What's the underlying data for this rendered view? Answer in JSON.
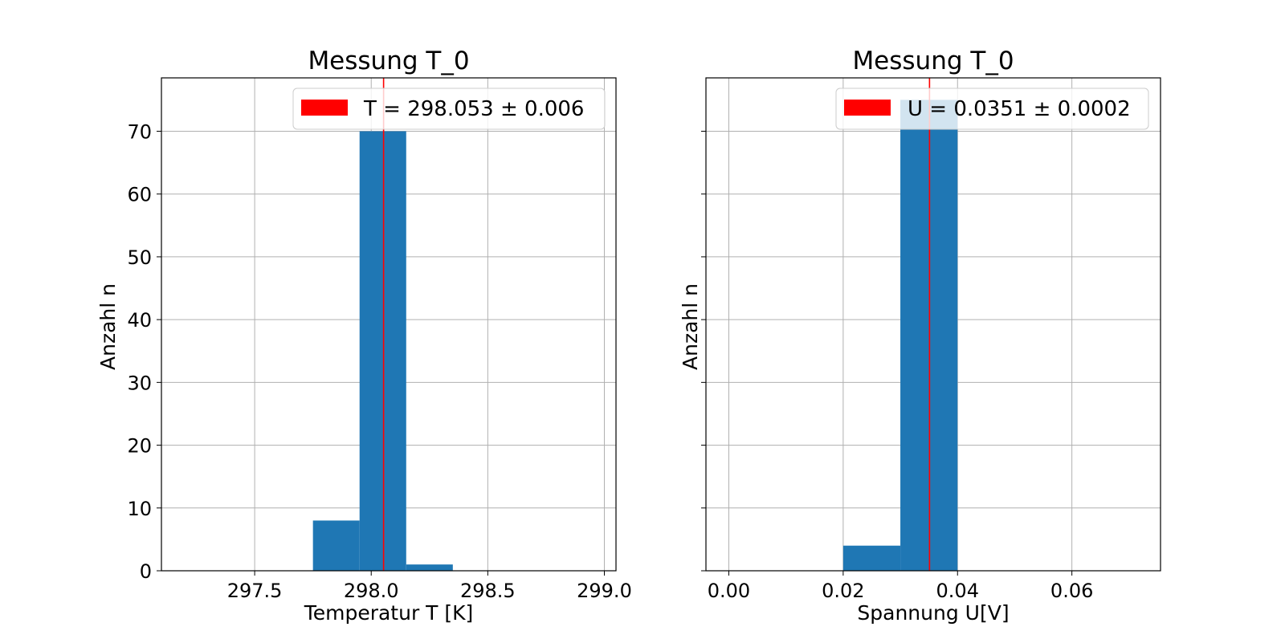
{
  "chart_data": [
    {
      "type": "bar",
      "title": "Messung T_0",
      "xlabel": "Temperatur T [K]",
      "ylabel": "Anzahl n",
      "xlim": [
        297.1,
        299.05
      ],
      "ylim": [
        0,
        78.5
      ],
      "xticks": [
        297.5,
        298.0,
        298.5,
        299.0
      ],
      "xtick_labels": [
        "297.5",
        "298.0",
        "298.5",
        "299.0"
      ],
      "yticks": [
        0,
        10,
        20,
        30,
        40,
        50,
        60,
        70
      ],
      "ytick_labels": [
        "0",
        "10",
        "20",
        "30",
        "40",
        "50",
        "60",
        "70"
      ],
      "grid": true,
      "bars": [
        {
          "x0": 297.75,
          "x1": 297.95,
          "value": 8
        },
        {
          "x0": 297.95,
          "x1": 298.15,
          "value": 70
        },
        {
          "x0": 298.15,
          "x1": 298.35,
          "value": 1
        }
      ],
      "bar_color": "#1f77b4",
      "vline": {
        "x": 298.053,
        "color": "#ff0000"
      },
      "legend": {
        "label": "T = 298.053 ± 0.006",
        "color": "#ff0000",
        "position": "upper-right"
      }
    },
    {
      "type": "bar",
      "title": "Messung T_0",
      "xlabel": "Spannung U[V]",
      "ylabel": "Anzahl n",
      "xlim": [
        -0.004,
        0.0755
      ],
      "ylim": [
        0,
        78.5
      ],
      "xticks": [
        0.0,
        0.02,
        0.04,
        0.06
      ],
      "xtick_labels": [
        "0.00",
        "0.02",
        "0.04",
        "0.06"
      ],
      "yticks": [
        0,
        10,
        20,
        30,
        40,
        50,
        60,
        70
      ],
      "ytick_labels": [],
      "grid": true,
      "bars": [
        {
          "x0": 0.02,
          "x1": 0.03,
          "value": 4
        },
        {
          "x0": 0.03,
          "x1": 0.04,
          "value": 75
        }
      ],
      "bar_color": "#1f77b4",
      "vline": {
        "x": 0.0351,
        "color": "#ff0000"
      },
      "legend": {
        "label": "U = 0.0351 ± 0.0002",
        "color": "#ff0000",
        "position": "upper-right"
      }
    }
  ]
}
